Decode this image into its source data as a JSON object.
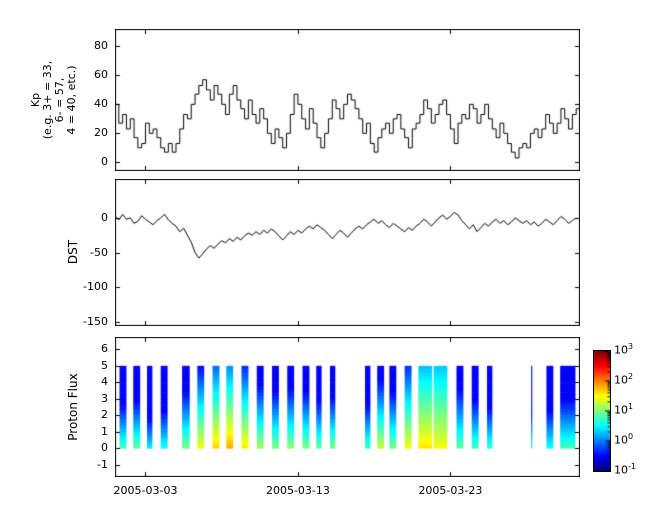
{
  "figure": {
    "background": "#ffffff",
    "axis_color": "#000000"
  },
  "x_axis": {
    "range_days": [
      0,
      30.5
    ],
    "ticks": [
      {
        "day": 2,
        "label": "2005-03-03"
      },
      {
        "day": 12,
        "label": "2005-03-13"
      },
      {
        "day": 22,
        "label": "2005-03-23"
      }
    ]
  },
  "chart_data": [
    {
      "type": "line",
      "style": "steps",
      "name": "Kp index",
      "ylabel": "Kp\n(e.g. 3+ = 33,\n6- = 57,\n4 = 40, etc.)",
      "color": "#000000",
      "ylim": [
        -6,
        92
      ],
      "yticks": [
        0,
        20,
        40,
        60,
        80
      ],
      "x_start_day": 0,
      "x_step_days": 0.25,
      "values": [
        40,
        27,
        33,
        23,
        30,
        17,
        10,
        13,
        27,
        20,
        23,
        17,
        10,
        7,
        13,
        7,
        13,
        23,
        33,
        30,
        40,
        47,
        53,
        57,
        50,
        43,
        53,
        47,
        40,
        33,
        47,
        53,
        43,
        37,
        30,
        43,
        33,
        27,
        37,
        30,
        20,
        13,
        23,
        17,
        10,
        20,
        33,
        47,
        40,
        30,
        23,
        37,
        27,
        17,
        10,
        20,
        30,
        43,
        37,
        30,
        40,
        47,
        43,
        37,
        30,
        20,
        27,
        13,
        7,
        17,
        23,
        27,
        20,
        30,
        33,
        23,
        17,
        10,
        23,
        27,
        33,
        43,
        37,
        27,
        33,
        40,
        43,
        33,
        23,
        13,
        27,
        33,
        30,
        40,
        37,
        27,
        33,
        40,
        30,
        23,
        17,
        27,
        20,
        13,
        7,
        3,
        10,
        13,
        10,
        20,
        23,
        17,
        23,
        33,
        27,
        20,
        27,
        37,
        30,
        23,
        33,
        37
      ]
    },
    {
      "type": "line",
      "style": "line",
      "name": "DST index",
      "ylabel": "DST",
      "color": "#000000",
      "ylim": [
        -156,
        56
      ],
      "yticks": [
        0,
        -50,
        -100,
        -150
      ],
      "x_start_day": 0,
      "x_step_days": 0.25,
      "values": [
        2,
        -3,
        5,
        -2,
        0,
        -8,
        -5,
        3,
        -2,
        -6,
        -10,
        -4,
        0,
        5,
        -3,
        -8,
        -12,
        -20,
        -15,
        -25,
        -35,
        -50,
        -58,
        -52,
        -45,
        -40,
        -44,
        -38,
        -33,
        -36,
        -30,
        -34,
        -28,
        -32,
        -26,
        -22,
        -25,
        -20,
        -24,
        -18,
        -22,
        -16,
        -20,
        -26,
        -32,
        -26,
        -20,
        -24,
        -18,
        -22,
        -16,
        -12,
        -16,
        -10,
        -14,
        -18,
        -24,
        -30,
        -24,
        -18,
        -22,
        -28,
        -22,
        -16,
        -12,
        -16,
        -10,
        -6,
        -2,
        -8,
        -4,
        -10,
        -14,
        -8,
        -12,
        -16,
        -20,
        -14,
        -18,
        -12,
        -8,
        -2,
        -6,
        -12,
        -6,
        0,
        4,
        -2,
        2,
        8,
        4,
        -4,
        -10,
        -16,
        -10,
        -20,
        -14,
        -8,
        -12,
        -6,
        -2,
        -8,
        -4,
        -10,
        -6,
        0,
        -4,
        -8,
        -4,
        -10,
        -6,
        -12,
        -8,
        -2,
        -6,
        -10,
        -4,
        2,
        -2,
        -8,
        -4,
        0
      ]
    },
    {
      "type": "heatmap",
      "name": "Proton Flux spectrogram",
      "ylabel": "Proton Flux",
      "colormap": "jet",
      "scale": "log10",
      "ylim": [
        -1.75,
        6.75
      ],
      "yticks": [
        -1,
        0,
        1,
        2,
        3,
        4,
        5,
        6
      ],
      "bar_y_range": [
        0,
        5
      ],
      "flux_range": [
        0.1,
        1000
      ],
      "background_flux": 0.3,
      "colorbar_base": "10",
      "colorbar_tick_exponents": [
        3,
        2,
        1,
        0,
        -1
      ],
      "columns": [
        {
          "day": 0.3,
          "w": 0.45,
          "base": 6,
          "h": 0.9
        },
        {
          "day": 1.2,
          "w": 0.45,
          "base": 8,
          "h": 0.9
        },
        {
          "day": 2.1,
          "w": 0.35,
          "base": 3,
          "h": 0.8
        },
        {
          "day": 3.0,
          "w": 0.45,
          "base": 4,
          "h": 0.9
        },
        {
          "day": 4.4,
          "w": 0.5,
          "base": 10,
          "h": 1.0
        },
        {
          "day": 5.4,
          "w": 0.45,
          "base": 30,
          "h": 1.1
        },
        {
          "day": 6.4,
          "w": 0.45,
          "base": 50,
          "h": 1.2
        },
        {
          "day": 7.3,
          "w": 0.45,
          "base": 70,
          "h": 1.2
        },
        {
          "day": 8.3,
          "w": 0.45,
          "base": 40,
          "h": 1.1
        },
        {
          "day": 9.3,
          "w": 0.45,
          "base": 15,
          "h": 1.0
        },
        {
          "day": 10.3,
          "w": 0.45,
          "base": 10,
          "h": 1.0
        },
        {
          "day": 11.3,
          "w": 0.45,
          "base": 12,
          "h": 1.0
        },
        {
          "day": 12.3,
          "w": 0.45,
          "base": 10,
          "h": 1.0
        },
        {
          "day": 13.2,
          "w": 0.35,
          "base": 8,
          "h": 0.9
        },
        {
          "day": 14.1,
          "w": 0.35,
          "base": 10,
          "h": 0.9
        },
        {
          "day": 16.4,
          "w": 0.35,
          "base": 6,
          "h": 0.9
        },
        {
          "day": 17.2,
          "w": 0.45,
          "base": 20,
          "h": 1.0
        },
        {
          "day": 18.0,
          "w": 0.45,
          "base": 10,
          "h": 1.0
        },
        {
          "day": 19.0,
          "w": 0.45,
          "base": 30,
          "h": 1.2
        },
        {
          "day": 19.9,
          "w": 0.9,
          "base": 40,
          "h": 1.6
        },
        {
          "day": 20.9,
          "w": 0.9,
          "base": 30,
          "h": 1.8
        },
        {
          "day": 22.4,
          "w": 0.45,
          "base": 8,
          "h": 1.1
        },
        {
          "day": 23.4,
          "w": 0.45,
          "base": 6,
          "h": 1.0
        },
        {
          "day": 24.4,
          "w": 0.35,
          "base": 5,
          "h": 0.9
        },
        {
          "day": 27.3,
          "w": 0.07,
          "base": 3,
          "h": 0.9
        },
        {
          "day": 28.3,
          "w": 0.45,
          "base": 4,
          "h": 0.9
        },
        {
          "day": 29.2,
          "w": 1.0,
          "base": 6,
          "h": 1.0
        }
      ]
    }
  ]
}
